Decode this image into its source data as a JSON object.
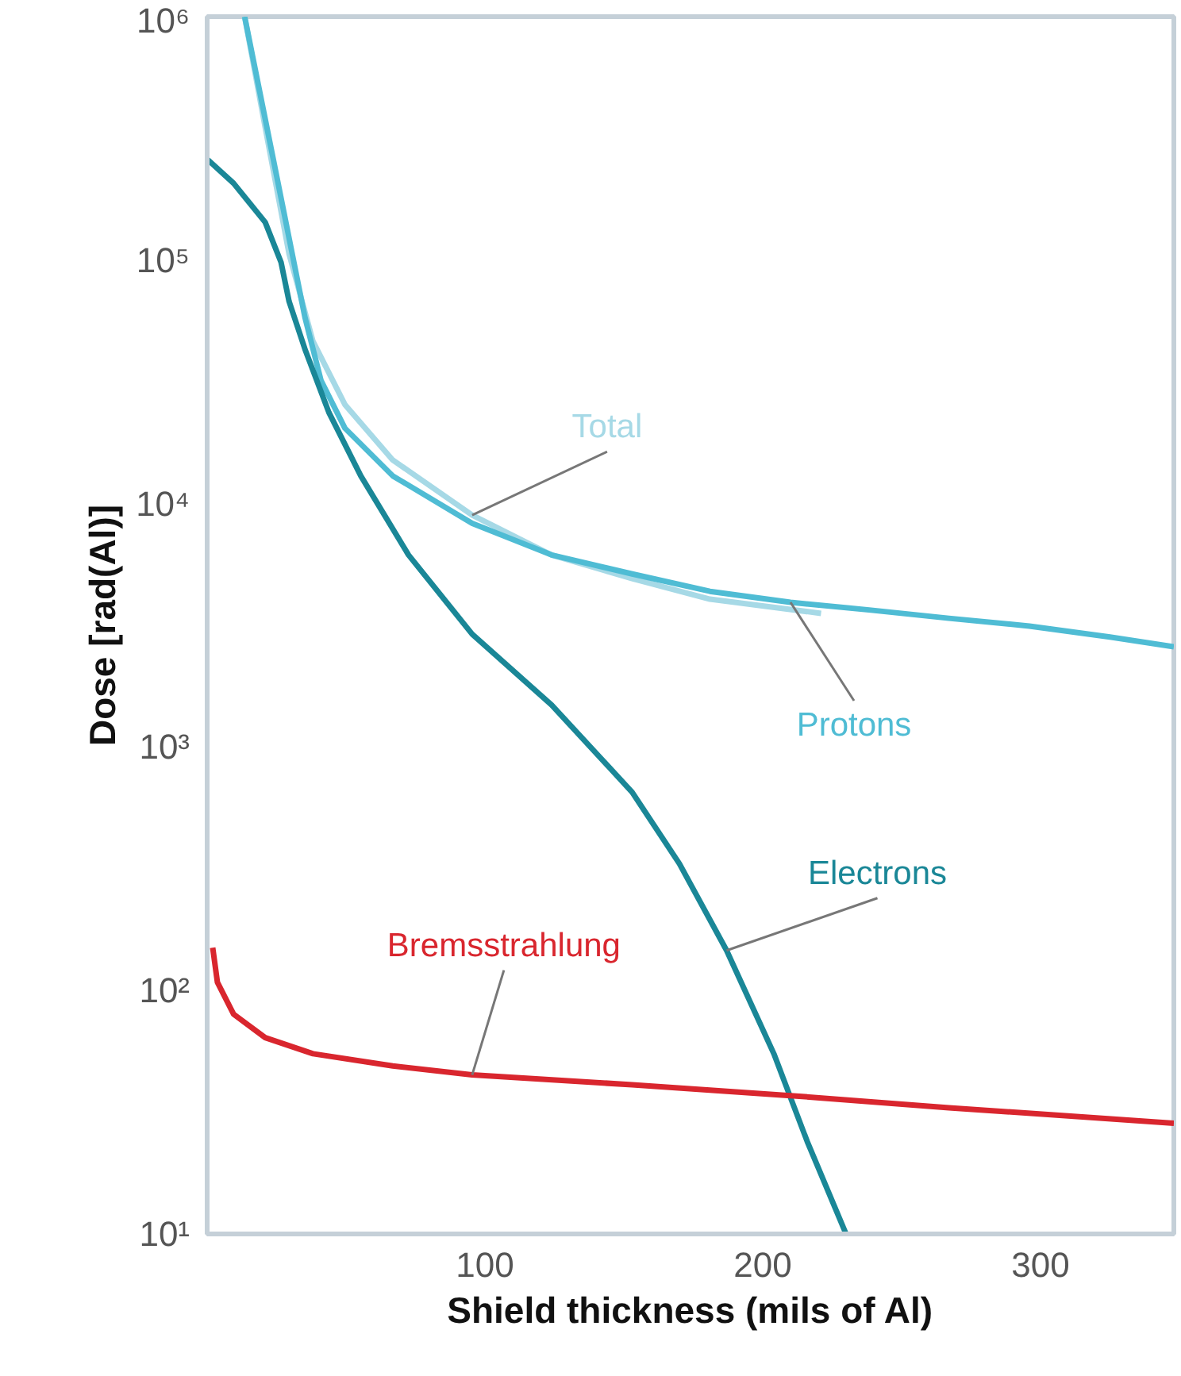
{
  "chart_data": {
    "type": "line",
    "xlabel": "Shield thickness (mils of Al)",
    "ylabel": "Dose [rad(Al)]",
    "log": "y",
    "xlim": [
      0,
      348
    ],
    "ylim": [
      10,
      1000000
    ],
    "xticks": [
      100,
      200,
      300
    ],
    "yticks": [
      {
        "value": 10,
        "label": "10¹"
      },
      {
        "value": 100,
        "label": "10²"
      },
      {
        "value": 1000,
        "label": "10³"
      },
      {
        "value": 10000,
        "label": "10⁴"
      },
      {
        "value": 100000,
        "label": "10⁵"
      },
      {
        "value": 1000000,
        "label": "10⁶"
      }
    ],
    "grid": false,
    "line_style": "solid",
    "marker": "none",
    "series": [
      {
        "name": "Total",
        "color": "#a6d9e6",
        "x": [
          13.5,
          20.9,
          29.5,
          38.1,
          49.6,
          66.8,
          95.4,
          124,
          153,
          181,
          221
        ],
        "values": [
          1000000,
          351000,
          106000,
          46400,
          25500,
          15100,
          8960,
          6150,
          4920,
          4050,
          3540
        ]
      },
      {
        "name": "Protons",
        "color": "#4fbcd4",
        "x": [
          13.5,
          23.8,
          35.2,
          41.0,
          49.6,
          66.8,
          95.4,
          124,
          153,
          181,
          210,
          239,
          267,
          296,
          325,
          348
        ],
        "values": [
          1000000,
          260000,
          58200,
          32000,
          20400,
          13000,
          8300,
          6150,
          5140,
          4360,
          3930,
          3650,
          3380,
          3140,
          2830,
          2580
        ]
      },
      {
        "name": "Electrons",
        "color": "#1a8797",
        "x": [
          0,
          9.5,
          20.9,
          26.6,
          29.5,
          35.2,
          43.8,
          55.3,
          72.5,
          95.4,
          124,
          153,
          170,
          187,
          204,
          216,
          230
        ],
        "values": [
          260000,
          207000,
          143000,
          98000,
          67600,
          43100,
          23700,
          13000,
          6150,
          2910,
          1490,
          652,
          332,
          146,
          55,
          24,
          10
        ]
      },
      {
        "name": "Bremsstrahlung",
        "color": "#d9262e",
        "x": [
          2.0,
          3.7,
          9.5,
          20.9,
          38.1,
          66.8,
          95.4,
          153,
          210,
          267,
          348
        ],
        "values": [
          150,
          108,
          80,
          64,
          55,
          49,
          45,
          41,
          37,
          33,
          28.5
        ]
      }
    ]
  }
}
